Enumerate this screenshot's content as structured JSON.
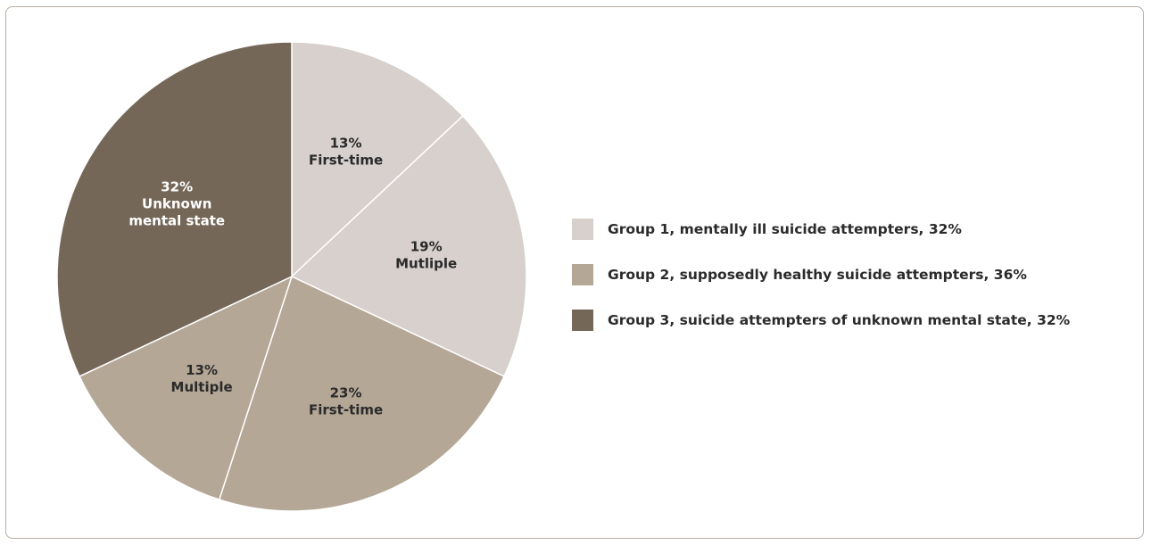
{
  "chart_data": {
    "type": "pie",
    "slices": [
      {
        "group": "Group 1",
        "percent": 13,
        "label": "First-time",
        "color": "#d7d0cc"
      },
      {
        "group": "Group 1",
        "percent": 19,
        "label": "Mutliple",
        "color": "#d7d0cc"
      },
      {
        "group": "Group 2",
        "percent": 23,
        "label": "First-time",
        "color": "#b4a796"
      },
      {
        "group": "Group 2",
        "percent": 13,
        "label": "Multiple",
        "color": "#b4a796"
      },
      {
        "group": "Group 3",
        "percent": 32,
        "label": "Unknown mental state",
        "color": "#746758"
      }
    ],
    "start_angle_deg": 0,
    "direction": "clockwise",
    "legend_position": "right",
    "legend": [
      {
        "label": "Group 1, mentally ill suicide attempters, 32%",
        "color": "#d7d0cc"
      },
      {
        "label": "Group 2, supposedly healthy suicide attempters, 36%",
        "color": "#b4a796"
      },
      {
        "label": "Group 3, suicide attempters of unknown mental state, 32%",
        "color": "#746758"
      }
    ]
  }
}
